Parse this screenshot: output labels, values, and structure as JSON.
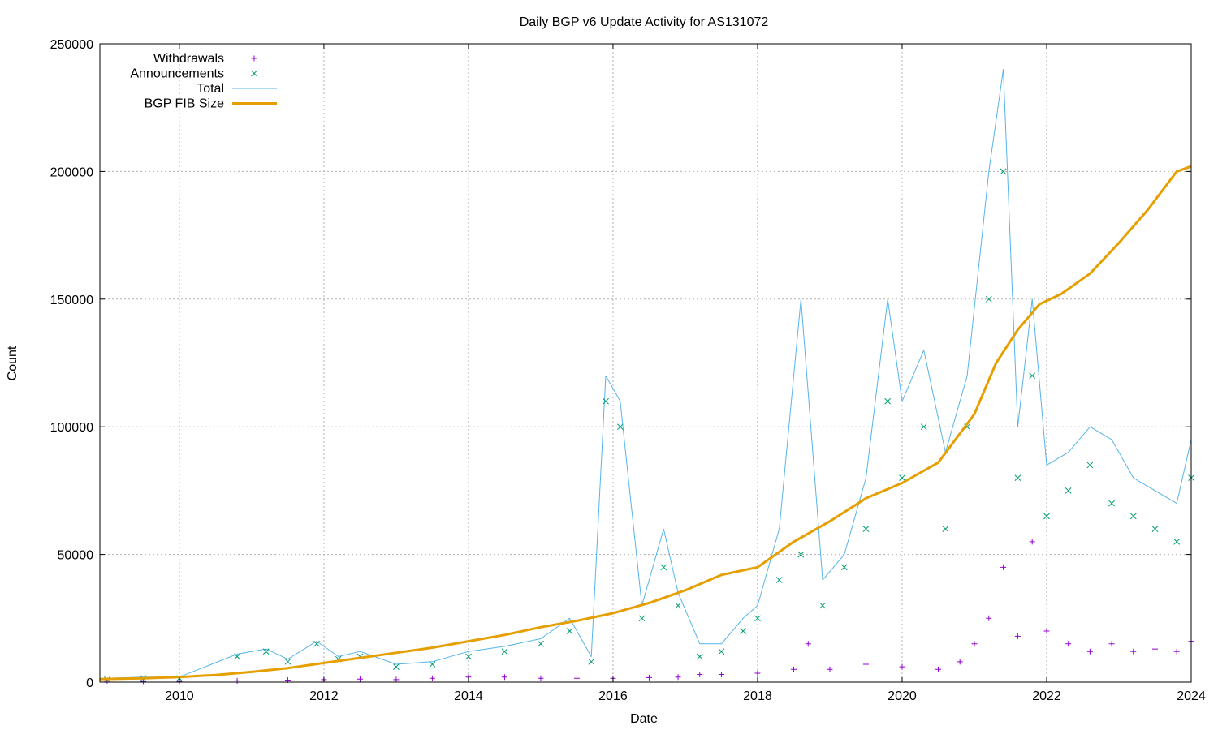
{
  "chart_data": {
    "type": "line",
    "title": "Daily BGP v6 Update Activity for AS131072",
    "xlabel": "Date",
    "ylabel": "Count",
    "xlim": [
      2008.9,
      2024.0
    ],
    "ylim": [
      0,
      250000
    ],
    "x_ticks": [
      "2010",
      "2012",
      "2014",
      "2016",
      "2018",
      "2020",
      "2022",
      "2024"
    ],
    "y_ticks": [
      "0",
      "50000",
      "100000",
      "150000",
      "200000",
      "250000"
    ],
    "grid": true,
    "legend_position": "top-left",
    "series": [
      {
        "name": "Withdrawals",
        "marker": "+",
        "color": "#9400d3",
        "x": [
          2009.0,
          2009.5,
          2010.0,
          2010.8,
          2011.5,
          2012.0,
          2012.5,
          2013.0,
          2013.5,
          2014.0,
          2014.5,
          2015.0,
          2015.5,
          2016.0,
          2016.5,
          2016.9,
          2017.2,
          2017.5,
          2018.0,
          2018.5,
          2018.7,
          2019.0,
          2019.5,
          2020.0,
          2020.5,
          2020.8,
          2021.0,
          2021.2,
          2021.4,
          2021.6,
          2021.8,
          2022.0,
          2022.3,
          2022.6,
          2022.9,
          2023.2,
          2023.5,
          2023.8,
          2024.0
        ],
        "values": [
          500,
          300,
          300,
          500,
          800,
          1000,
          1200,
          1000,
          1500,
          2000,
          2000,
          1500,
          1500,
          1500,
          1800,
          2000,
          3000,
          3000,
          3500,
          5000,
          15000,
          5000,
          7000,
          6000,
          5000,
          8000,
          15000,
          25000,
          45000,
          18000,
          55000,
          20000,
          15000,
          12000,
          15000,
          12000,
          13000,
          12000,
          16000
        ]
      },
      {
        "name": "Announcements",
        "marker": "x",
        "color": "#009e73",
        "x": [
          2009.0,
          2009.5,
          2010.0,
          2010.8,
          2011.2,
          2011.5,
          2011.9,
          2012.2,
          2012.5,
          2013.0,
          2013.5,
          2014.0,
          2014.5,
          2015.0,
          2015.4,
          2015.7,
          2015.9,
          2016.1,
          2016.4,
          2016.7,
          2016.9,
          2017.2,
          2017.5,
          2017.8,
          2018.0,
          2018.3,
          2018.6,
          2018.9,
          2019.2,
          2019.5,
          2019.8,
          2020.0,
          2020.3,
          2020.6,
          2020.9,
          2021.2,
          2021.4,
          2021.6,
          2021.8,
          2022.0,
          2022.3,
          2022.6,
          2022.9,
          2023.2,
          2023.5,
          2023.8,
          2024.0
        ],
        "values": [
          1000,
          1500,
          1500,
          10000,
          12000,
          8000,
          15000,
          9000,
          10000,
          6000,
          7000,
          10000,
          12000,
          15000,
          20000,
          8000,
          110000,
          100000,
          25000,
          45000,
          30000,
          10000,
          12000,
          20000,
          25000,
          40000,
          50000,
          30000,
          45000,
          60000,
          110000,
          80000,
          100000,
          60000,
          100000,
          150000,
          200000,
          80000,
          120000,
          65000,
          75000,
          85000,
          70000,
          65000,
          60000,
          55000,
          80000
        ]
      },
      {
        "name": "Total",
        "marker": "line",
        "color": "#56b4e9",
        "x": [
          2009.0,
          2009.5,
          2010.0,
          2010.8,
          2011.2,
          2011.5,
          2011.9,
          2012.2,
          2012.5,
          2013.0,
          2013.5,
          2014.0,
          2014.5,
          2015.0,
          2015.4,
          2015.7,
          2015.9,
          2016.1,
          2016.4,
          2016.7,
          2016.9,
          2017.2,
          2017.5,
          2017.8,
          2018.0,
          2018.3,
          2018.6,
          2018.9,
          2019.2,
          2019.5,
          2019.8,
          2020.0,
          2020.3,
          2020.6,
          2020.9,
          2021.2,
          2021.4,
          2021.6,
          2021.8,
          2022.0,
          2022.3,
          2022.6,
          2022.9,
          2023.2,
          2023.5,
          2023.8,
          2024.0
        ],
        "values": [
          1500,
          2000,
          2000,
          11000,
          13000,
          9000,
          16000,
          10000,
          12000,
          7000,
          8000,
          12000,
          14000,
          17000,
          25000,
          10000,
          120000,
          110000,
          30000,
          60000,
          35000,
          15000,
          15000,
          25000,
          30000,
          60000,
          150000,
          40000,
          50000,
          80000,
          150000,
          110000,
          130000,
          90000,
          120000,
          200000,
          240000,
          100000,
          150000,
          85000,
          90000,
          100000,
          95000,
          80000,
          75000,
          70000,
          95000
        ]
      },
      {
        "name": "BGP FIB Size",
        "marker": "line",
        "color": "#e69f00",
        "x": [
          2008.9,
          2009.5,
          2010.0,
          2010.5,
          2011.0,
          2011.5,
          2012.0,
          2012.5,
          2013.0,
          2013.5,
          2014.0,
          2014.5,
          2015.0,
          2015.5,
          2016.0,
          2016.5,
          2017.0,
          2017.5,
          2018.0,
          2018.5,
          2019.0,
          2019.5,
          2020.0,
          2020.5,
          2021.0,
          2021.3,
          2021.6,
          2021.9,
          2022.2,
          2022.6,
          2023.0,
          2023.4,
          2023.8,
          2024.0
        ],
        "values": [
          1200,
          1500,
          2000,
          2800,
          4000,
          5500,
          7500,
          9500,
          11500,
          13500,
          16000,
          18500,
          21500,
          24000,
          27000,
          31000,
          36000,
          42000,
          45000,
          55000,
          63000,
          72000,
          78000,
          86000,
          105000,
          125000,
          138000,
          148000,
          152000,
          160000,
          172000,
          185000,
          200000,
          202000
        ]
      }
    ]
  }
}
